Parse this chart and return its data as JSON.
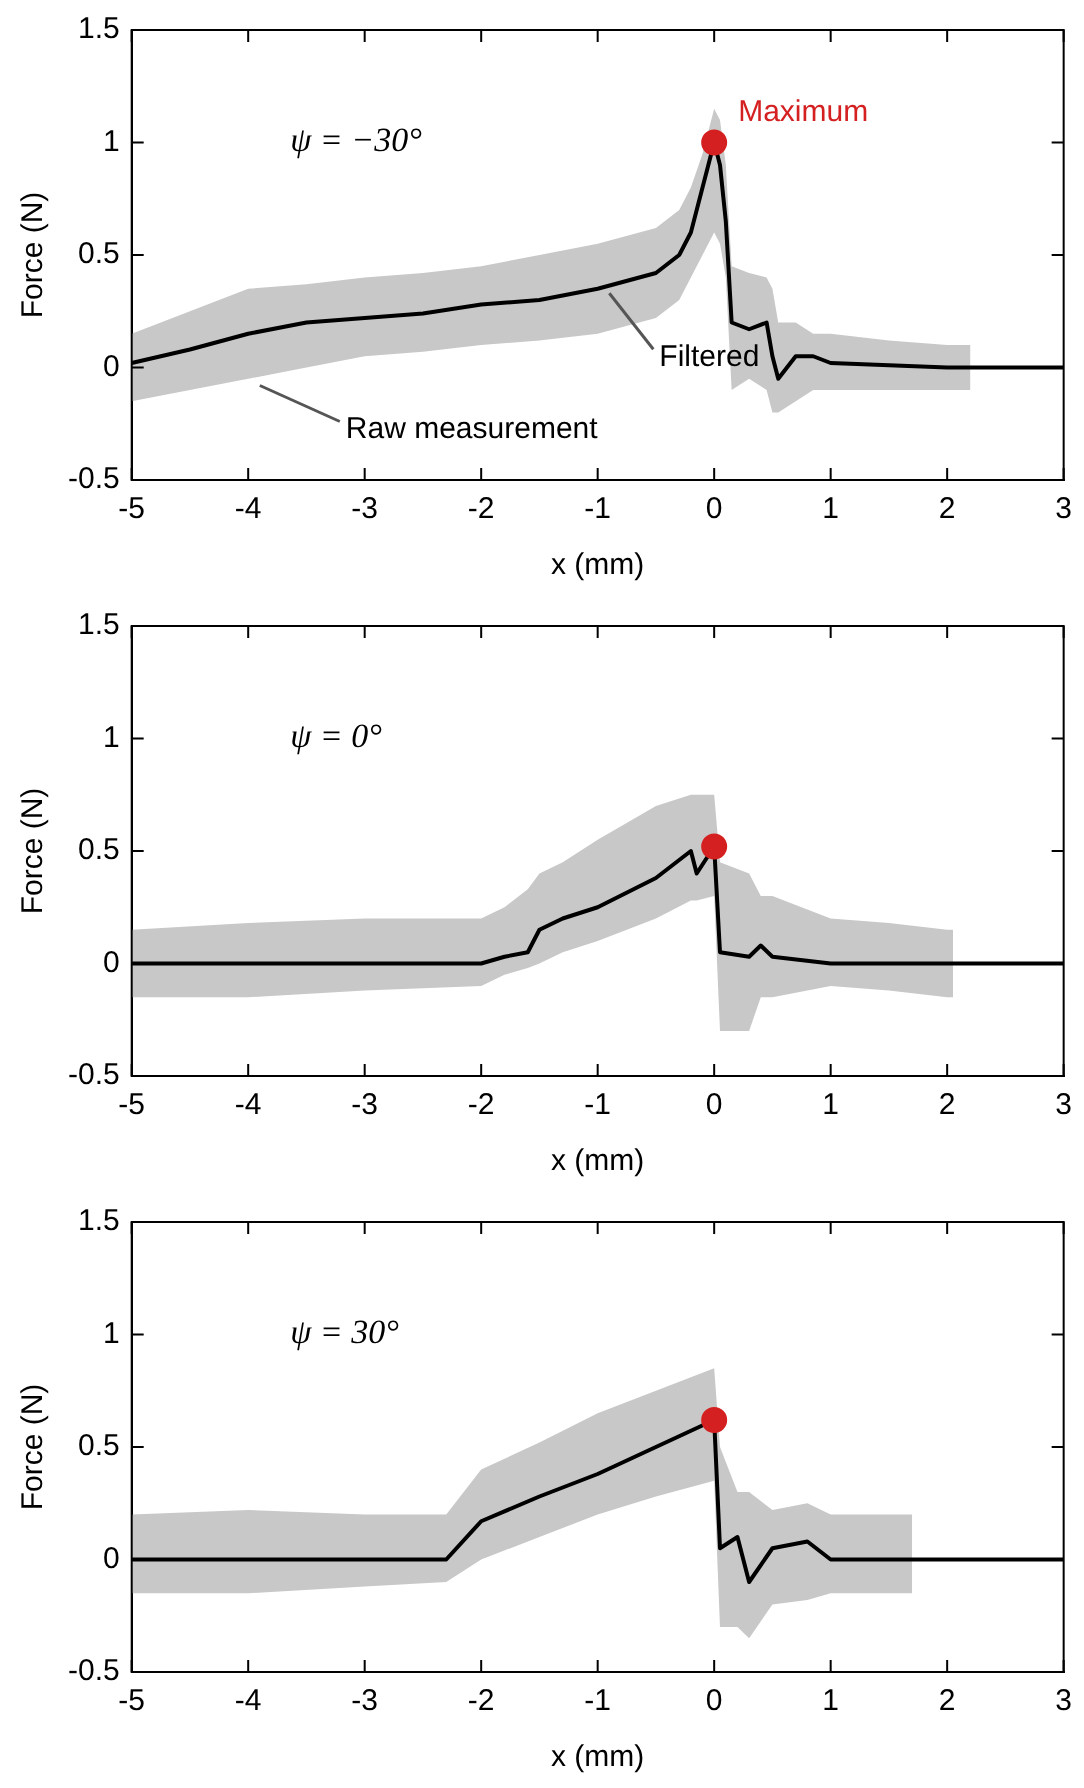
{
  "chart_data": [
    {
      "type": "line",
      "xlabel": "x (mm)",
      "ylabel": "Force (N)",
      "xlim": [
        -5,
        3
      ],
      "ylim": [
        -0.5,
        1.5
      ],
      "xticks": [
        -5,
        -4,
        -3,
        -2,
        -1,
        0,
        1,
        2,
        3
      ],
      "yticks": [
        -0.5,
        0,
        0.5,
        1,
        1.5
      ],
      "annotations": [
        "ψ = −30°",
        {
          "text": "Filtered",
          "x": -0.9,
          "y": 0.33
        },
        {
          "text": "Raw measurement",
          "x": -3.9,
          "y": -0.08
        }
      ],
      "series": [
        {
          "color": "#000000",
          "line_style": "solid",
          "marker": "none",
          "x": [
            -5,
            -4.5,
            -4,
            -3.5,
            -3,
            -2.5,
            -2,
            -1.5,
            -1,
            -0.5,
            -0.3,
            -0.2,
            -0.1,
            0,
            0.05,
            0.1,
            0.15,
            0.3,
            0.45,
            0.5,
            0.55,
            0.7,
            0.85,
            1,
            1.5,
            2,
            2.2,
            2.5,
            3
          ],
          "values": [
            0.02,
            0.08,
            0.15,
            0.2,
            0.22,
            0.24,
            0.28,
            0.3,
            0.35,
            0.42,
            0.5,
            0.6,
            0.8,
            1.0,
            0.9,
            0.65,
            0.2,
            0.17,
            0.2,
            0.05,
            -0.05,
            0.05,
            0.05,
            0.02,
            0.01,
            0.0,
            0.0,
            0.0,
            0.0
          ],
          "lower": [
            -0.15,
            -0.1,
            -0.05,
            0.0,
            0.05,
            0.07,
            0.1,
            0.12,
            0.15,
            0.22,
            0.3,
            0.4,
            0.5,
            0.6,
            0.55,
            0.4,
            -0.1,
            -0.05,
            -0.1,
            -0.2,
            -0.2,
            -0.15,
            -0.1,
            -0.1,
            -0.1,
            -0.1,
            -0.1,
            null,
            null
          ],
          "upper": [
            0.15,
            0.25,
            0.35,
            0.37,
            0.4,
            0.42,
            0.45,
            0.5,
            0.55,
            0.62,
            0.7,
            0.8,
            0.95,
            1.15,
            1.1,
            0.9,
            0.45,
            0.42,
            0.4,
            0.35,
            0.2,
            0.2,
            0.15,
            0.15,
            0.12,
            0.1,
            0.1,
            null,
            null
          ]
        },
        {
          "type": "scatter",
          "name": "Maximum",
          "color": "#d42020",
          "marker": "circle",
          "x": [
            0
          ],
          "values": [
            1.0
          ]
        }
      ]
    },
    {
      "type": "line",
      "xlabel": "x (mm)",
      "ylabel": "Force (N)",
      "xlim": [
        -5,
        3
      ],
      "ylim": [
        -0.5,
        1.5
      ],
      "xticks": [
        -5,
        -4,
        -3,
        -2,
        -1,
        0,
        1,
        2,
        3
      ],
      "yticks": [
        -0.5,
        0,
        0.5,
        1,
        1.5
      ],
      "annotations": [
        "ψ = 0°"
      ],
      "series": [
        {
          "color": "#000000",
          "line_style": "solid",
          "marker": "none",
          "x": [
            -5,
            -4,
            -3,
            -2,
            -1.8,
            -1.6,
            -1.5,
            -1.3,
            -1,
            -0.5,
            -0.2,
            -0.15,
            0,
            0.05,
            0.3,
            0.4,
            0.5,
            1,
            1.5,
            2,
            2.05,
            2.5,
            3
          ],
          "values": [
            0.0,
            0.0,
            0.0,
            0.0,
            0.03,
            0.05,
            0.15,
            0.2,
            0.25,
            0.38,
            0.5,
            0.4,
            0.52,
            0.05,
            0.03,
            0.08,
            0.03,
            0.0,
            0.0,
            0.0,
            0.0,
            0.0,
            0.0
          ],
          "lower": [
            -0.15,
            -0.15,
            -0.12,
            -0.1,
            -0.05,
            -0.02,
            0.0,
            0.05,
            0.1,
            0.2,
            0.28,
            0.28,
            0.3,
            -0.3,
            -0.3,
            -0.15,
            -0.15,
            -0.1,
            -0.12,
            -0.15,
            -0.15,
            null,
            null
          ],
          "upper": [
            0.15,
            0.18,
            0.2,
            0.2,
            0.25,
            0.33,
            0.4,
            0.45,
            0.55,
            0.7,
            0.75,
            0.75,
            0.75,
            0.45,
            0.4,
            0.3,
            0.3,
            0.2,
            0.18,
            0.15,
            0.15,
            null,
            null
          ]
        },
        {
          "type": "scatter",
          "color": "#d42020",
          "marker": "circle",
          "x": [
            0
          ],
          "values": [
            0.52
          ]
        }
      ]
    },
    {
      "type": "line",
      "xlabel": "x (mm)",
      "ylabel": "Force (N)",
      "xlim": [
        -5,
        3
      ],
      "ylim": [
        -0.5,
        1.5
      ],
      "xticks": [
        -5,
        -4,
        -3,
        -2,
        -1,
        0,
        1,
        2,
        3
      ],
      "yticks": [
        -0.5,
        0,
        0.5,
        1,
        1.5
      ],
      "annotations": [
        "ψ = 30°"
      ],
      "series": [
        {
          "color": "#000000",
          "line_style": "solid",
          "marker": "none",
          "x": [
            -5,
            -4,
            -3,
            -2.3,
            -2,
            -1.5,
            -1,
            -0.5,
            0,
            0.05,
            0.2,
            0.3,
            0.5,
            0.8,
            1,
            1.7,
            2,
            3
          ],
          "values": [
            0.0,
            0.0,
            0.0,
            0.0,
            0.17,
            0.28,
            0.38,
            0.5,
            0.62,
            0.05,
            0.1,
            -0.1,
            0.05,
            0.08,
            0.0,
            0.0,
            0.0,
            0.0
          ],
          "lower": [
            -0.15,
            -0.15,
            -0.12,
            -0.1,
            0.0,
            0.1,
            0.2,
            0.28,
            0.35,
            -0.3,
            -0.3,
            -0.35,
            -0.2,
            -0.18,
            -0.15,
            -0.15,
            null,
            null
          ],
          "upper": [
            0.2,
            0.22,
            0.2,
            0.2,
            0.4,
            0.52,
            0.65,
            0.75,
            0.85,
            0.5,
            0.3,
            0.3,
            0.22,
            0.25,
            0.2,
            0.2,
            null,
            null
          ]
        },
        {
          "type": "scatter",
          "color": "#d42020",
          "marker": "circle",
          "x": [
            0
          ],
          "values": [
            0.62
          ]
        }
      ]
    }
  ]
}
